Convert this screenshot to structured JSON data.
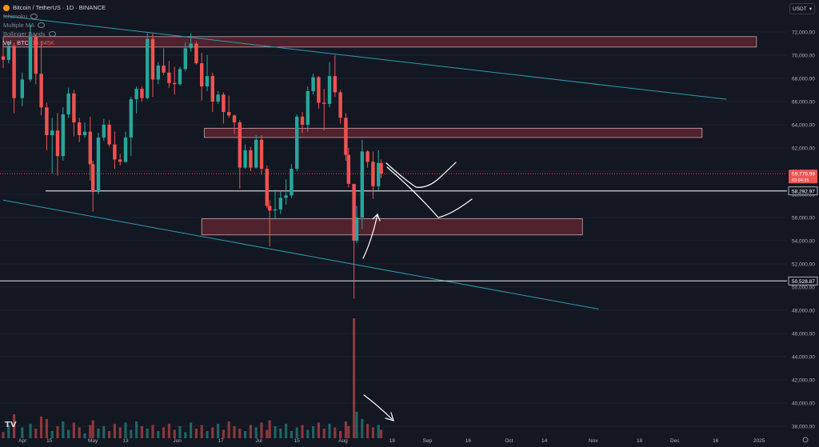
{
  "legend": {
    "title": "Bitcoin / TetherUS · 1D · BINANCE",
    "indicators": [
      "Ichimoku",
      "Multiple MA",
      "Bollinger Bands"
    ],
    "vol_label": "Vol · BTC",
    "vol_value": "13.945K"
  },
  "currency": "USDT",
  "currency_icon": "chevron-down-icon",
  "logo_text": "TV",
  "colors": {
    "background": "#131722",
    "grid": "#1e222d",
    "up": "#26a69a",
    "down": "#ef5350",
    "trendline": "#2a9bb1",
    "zone_fill": "#5c2530",
    "hline": "#d1d4dc"
  },
  "chart_data": {
    "type": "candlestick",
    "symbol": "BTCUSDT",
    "timeframe": "1D",
    "x_ticks": [
      "Apr",
      "15",
      "May",
      "13",
      "Jun",
      "17",
      "Jul",
      "15",
      "Aug",
      "19",
      "Sep",
      "16",
      "Oct",
      "14",
      "Nov",
      "18",
      "Dec",
      "16",
      "2025"
    ],
    "y_ticks": [
      "72,000.00",
      "70,000.00",
      "68,000.00",
      "66,000.00",
      "64,000.00",
      "62,000.00",
      "60,000.00",
      "58,000.00",
      "56,000.00",
      "54,000.00",
      "52,000.00",
      "50,000.00",
      "48,000.00",
      "46,000.00",
      "44,000.00",
      "42,000.00",
      "40,000.00",
      "38,000.00"
    ],
    "ylim": [
      37500,
      73500
    ],
    "price_labels": [
      {
        "price": 59779.99,
        "text": "59,779.99",
        "sub": "03:04:35",
        "kind": "current"
      },
      {
        "price": 58292.97,
        "text": "58,292.97",
        "kind": "line"
      },
      {
        "price": 50528.87,
        "text": "50,528.87",
        "kind": "line"
      }
    ],
    "horizontal_lines": [
      58292.97,
      50528.87
    ],
    "zones": [
      {
        "from": "2024-03-29",
        "to": "2024-12-31",
        "low": 70700,
        "high": 71600
      },
      {
        "from": "2024-06-11",
        "to": "2024-12-11",
        "low": 62900,
        "high": 63700
      },
      {
        "from": "2024-06-10",
        "to": "2024-10-28",
        "low": 54500,
        "high": 55900
      }
    ],
    "trendlines": [
      {
        "from": {
          "date": "2024-03-29",
          "price": 73400
        },
        "to": {
          "date": "2024-12-20",
          "price": 66200
        }
      },
      {
        "from": {
          "date": "2024-03-29",
          "price": 57500
        },
        "to": {
          "date": "2024-11-03",
          "price": 48100
        }
      }
    ],
    "candles": [
      {
        "date": "2024-03-29",
        "o": 69900,
        "h": 70700,
        "l": 68900,
        "c": 69600
      },
      {
        "date": "2024-03-31",
        "o": 69600,
        "h": 71200,
        "l": 69300,
        "c": 70800
      },
      {
        "date": "2024-04-02",
        "o": 70800,
        "h": 71000,
        "l": 65000,
        "c": 66300
      },
      {
        "date": "2024-04-05",
        "o": 66300,
        "h": 68500,
        "l": 65600,
        "c": 67900
      },
      {
        "date": "2024-04-08",
        "o": 67900,
        "h": 72600,
        "l": 67700,
        "c": 71600
      },
      {
        "date": "2024-04-10",
        "o": 71600,
        "h": 71800,
        "l": 67500,
        "c": 68400
      },
      {
        "date": "2024-04-12",
        "o": 68400,
        "h": 71200,
        "l": 64800,
        "c": 65500
      },
      {
        "date": "2024-04-14",
        "o": 65500,
        "h": 65900,
        "l": 61800,
        "c": 63100
      },
      {
        "date": "2024-04-16",
        "o": 63100,
        "h": 64600,
        "l": 59800,
        "c": 63500
      },
      {
        "date": "2024-04-18",
        "o": 63500,
        "h": 65000,
        "l": 59600,
        "c": 61300
      },
      {
        "date": "2024-04-20",
        "o": 61300,
        "h": 65500,
        "l": 60900,
        "c": 64900
      },
      {
        "date": "2024-04-22",
        "o": 64900,
        "h": 67200,
        "l": 64600,
        "c": 66700
      },
      {
        "date": "2024-04-24",
        "o": 66700,
        "h": 67000,
        "l": 63000,
        "c": 64200
      },
      {
        "date": "2024-04-26",
        "o": 64200,
        "h": 64600,
        "l": 62500,
        "c": 63100
      },
      {
        "date": "2024-04-28",
        "o": 63100,
        "h": 64200,
        "l": 62900,
        "c": 63400
      },
      {
        "date": "2024-04-30",
        "o": 63400,
        "h": 64700,
        "l": 59200,
        "c": 60600
      },
      {
        "date": "2024-05-01",
        "o": 60600,
        "h": 60900,
        "l": 56500,
        "c": 58200
      },
      {
        "date": "2024-05-03",
        "o": 58200,
        "h": 63300,
        "l": 58000,
        "c": 62900
      },
      {
        "date": "2024-05-05",
        "o": 62900,
        "h": 64500,
        "l": 62600,
        "c": 64000
      },
      {
        "date": "2024-05-07",
        "o": 64000,
        "h": 64400,
        "l": 62100,
        "c": 62300
      },
      {
        "date": "2024-05-09",
        "o": 62300,
        "h": 63400,
        "l": 60200,
        "c": 61000
      },
      {
        "date": "2024-05-11",
        "o": 61000,
        "h": 61500,
        "l": 60500,
        "c": 60800
      },
      {
        "date": "2024-05-13",
        "o": 60800,
        "h": 63400,
        "l": 60700,
        "c": 62900
      },
      {
        "date": "2024-05-15",
        "o": 62900,
        "h": 66400,
        "l": 61300,
        "c": 66200
      },
      {
        "date": "2024-05-17",
        "o": 66200,
        "h": 67300,
        "l": 65000,
        "c": 67100
      },
      {
        "date": "2024-05-19",
        "o": 67100,
        "h": 67300,
        "l": 66000,
        "c": 66300
      },
      {
        "date": "2024-05-21",
        "o": 66300,
        "h": 71900,
        "l": 66200,
        "c": 71400
      },
      {
        "date": "2024-05-23",
        "o": 71400,
        "h": 71900,
        "l": 66400,
        "c": 67900
      },
      {
        "date": "2024-05-25",
        "o": 67900,
        "h": 69400,
        "l": 67500,
        "c": 69100
      },
      {
        "date": "2024-05-27",
        "o": 69100,
        "h": 70600,
        "l": 68300,
        "c": 68500
      },
      {
        "date": "2024-05-29",
        "o": 68500,
        "h": 69500,
        "l": 67200,
        "c": 67600
      },
      {
        "date": "2024-05-31",
        "o": 67600,
        "h": 69000,
        "l": 66600,
        "c": 67500
      },
      {
        "date": "2024-06-02",
        "o": 67500,
        "h": 69000,
        "l": 67400,
        "c": 68800
      },
      {
        "date": "2024-06-04",
        "o": 68800,
        "h": 71100,
        "l": 68600,
        "c": 70600
      },
      {
        "date": "2024-06-06",
        "o": 70600,
        "h": 71900,
        "l": 70300,
        "c": 71000
      },
      {
        "date": "2024-06-08",
        "o": 71000,
        "h": 71200,
        "l": 69200,
        "c": 69300
      },
      {
        "date": "2024-06-10",
        "o": 69300,
        "h": 70200,
        "l": 66100,
        "c": 67300
      },
      {
        "date": "2024-06-12",
        "o": 67300,
        "h": 70000,
        "l": 66900,
        "c": 68200
      },
      {
        "date": "2024-06-14",
        "o": 68200,
        "h": 68500,
        "l": 65100,
        "c": 66000
      },
      {
        "date": "2024-06-16",
        "o": 66000,
        "h": 66900,
        "l": 65800,
        "c": 66600
      },
      {
        "date": "2024-06-18",
        "o": 66600,
        "h": 66800,
        "l": 64100,
        "c": 65100
      },
      {
        "date": "2024-06-20",
        "o": 65100,
        "h": 66500,
        "l": 64600,
        "c": 64800
      },
      {
        "date": "2024-06-22",
        "o": 64800,
        "h": 64900,
        "l": 63200,
        "c": 64200
      },
      {
        "date": "2024-06-24",
        "o": 64200,
        "h": 64400,
        "l": 58500,
        "c": 60300
      },
      {
        "date": "2024-06-26",
        "o": 60300,
        "h": 62300,
        "l": 60200,
        "c": 61800
      },
      {
        "date": "2024-06-28",
        "o": 61800,
        "h": 62100,
        "l": 60000,
        "c": 60300
      },
      {
        "date": "2024-06-30",
        "o": 60300,
        "h": 63100,
        "l": 60200,
        "c": 62700
      },
      {
        "date": "2024-07-02",
        "o": 62700,
        "h": 63100,
        "l": 59700,
        "c": 60200
      },
      {
        "date": "2024-07-04",
        "o": 60200,
        "h": 60500,
        "l": 56800,
        "c": 57000
      },
      {
        "date": "2024-07-05",
        "o": 57000,
        "h": 57500,
        "l": 53500,
        "c": 56600
      },
      {
        "date": "2024-07-07",
        "o": 56600,
        "h": 58400,
        "l": 55800,
        "c": 56700
      },
      {
        "date": "2024-07-09",
        "o": 56700,
        "h": 58300,
        "l": 56300,
        "c": 57700
      },
      {
        "date": "2024-07-11",
        "o": 57700,
        "h": 59300,
        "l": 57100,
        "c": 57900
      },
      {
        "date": "2024-07-13",
        "o": 57900,
        "h": 60600,
        "l": 57700,
        "c": 60200
      },
      {
        "date": "2024-07-15",
        "o": 60200,
        "h": 64900,
        "l": 60000,
        "c": 64700
      },
      {
        "date": "2024-07-17",
        "o": 64700,
        "h": 65100,
        "l": 63300,
        "c": 64000
      },
      {
        "date": "2024-07-19",
        "o": 64000,
        "h": 67300,
        "l": 63400,
        "c": 66900
      },
      {
        "date": "2024-07-21",
        "o": 66900,
        "h": 68400,
        "l": 66600,
        "c": 68100
      },
      {
        "date": "2024-07-23",
        "o": 68100,
        "h": 68200,
        "l": 65400,
        "c": 65900
      },
      {
        "date": "2024-07-25",
        "o": 65900,
        "h": 67100,
        "l": 63500,
        "c": 65800
      },
      {
        "date": "2024-07-27",
        "o": 65800,
        "h": 69400,
        "l": 65500,
        "c": 68200
      },
      {
        "date": "2024-07-29",
        "o": 68200,
        "h": 70000,
        "l": 66400,
        "c": 66800
      },
      {
        "date": "2024-07-31",
        "o": 66800,
        "h": 67000,
        "l": 64100,
        "c": 64600
      },
      {
        "date": "2024-08-02",
        "o": 64600,
        "h": 65000,
        "l": 60900,
        "c": 61400
      },
      {
        "date": "2024-08-03",
        "o": 61400,
        "h": 62000,
        "l": 58600,
        "c": 58900
      },
      {
        "date": "2024-08-05",
        "o": 58900,
        "h": 58700,
        "l": 49000,
        "c": 54000
      },
      {
        "date": "2024-08-06",
        "o": 54000,
        "h": 57000,
        "l": 53800,
        "c": 56000
      },
      {
        "date": "2024-08-08",
        "o": 56000,
        "h": 62700,
        "l": 55000,
        "c": 61700
      },
      {
        "date": "2024-08-10",
        "o": 61700,
        "h": 61800,
        "l": 60300,
        "c": 60800
      },
      {
        "date": "2024-08-12",
        "o": 60800,
        "h": 61700,
        "l": 57600,
        "c": 58700
      },
      {
        "date": "2024-08-14",
        "o": 58700,
        "h": 61800,
        "l": 58300,
        "c": 60700
      },
      {
        "date": "2024-08-15",
        "o": 60700,
        "h": 61000,
        "l": 59400,
        "c": 59780
      }
    ],
    "volume": [
      5,
      11,
      20,
      9,
      12,
      8,
      18,
      16,
      6,
      10,
      14,
      7,
      13,
      9,
      4,
      11,
      15,
      8,
      10,
      6,
      12,
      9,
      13,
      7,
      14,
      10,
      8,
      11,
      6,
      9,
      12,
      7,
      10,
      5,
      13,
      8,
      11,
      6,
      9,
      12,
      7,
      14,
      10,
      8,
      6,
      11,
      9,
      13,
      7,
      15,
      10,
      8,
      12,
      6,
      9,
      11,
      7,
      10,
      13,
      8,
      12,
      9,
      6,
      14,
      10,
      100,
      22,
      16,
      12,
      9,
      11,
      7
    ]
  },
  "annotations": {
    "drawings": [
      "freehand-path-upper",
      "freehand-path-lower",
      "arrow-up",
      "arrow-volume-down"
    ]
  }
}
